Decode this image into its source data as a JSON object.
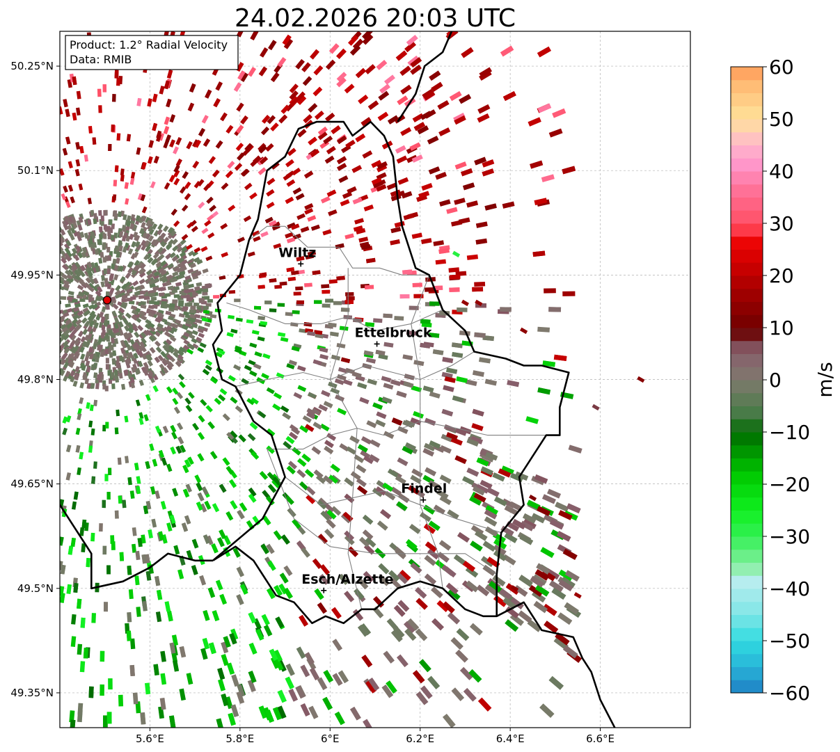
{
  "title": "24.02.2026 20:03 UTC",
  "info_box": {
    "line1": "Product: 1.2° Radial Velocity",
    "line2": "Data: RMIB"
  },
  "colorbar": {
    "label": "m/s",
    "min": -60,
    "max": 60,
    "tick_labels": [
      "60",
      "50",
      "40",
      "30",
      "20",
      "10",
      "0",
      "−10",
      "−20",
      "−30",
      "−40",
      "−50",
      "−60"
    ]
  },
  "colors": {
    "border": "#000000",
    "canton_lines": "#808080",
    "grid": "#b0b0b0",
    "radar_site": "#e10000"
  },
  "chart_data": {
    "type": "heatmap",
    "title": "24.02.2026 20:03 UTC",
    "projection": "lat/lon map",
    "xlim": [
      5.4,
      6.8
    ],
    "ylim": [
      49.3,
      50.3
    ],
    "grid": true,
    "x_ticks": [
      {
        "value": 5.6,
        "label": "5.6°E"
      },
      {
        "value": 5.8,
        "label": "5.8°E"
      },
      {
        "value": 6.0,
        "label": "6°E"
      },
      {
        "value": 6.2,
        "label": "6.2°E"
      },
      {
        "value": 6.4,
        "label": "6.4°E"
      },
      {
        "value": 6.6,
        "label": "6.6°E"
      }
    ],
    "y_ticks": [
      {
        "value": 50.25,
        "label": "50.25°N"
      },
      {
        "value": 50.1,
        "label": "50.1°N"
      },
      {
        "value": 49.95,
        "label": "49.95°N"
      },
      {
        "value": 49.8,
        "label": "49.8°N"
      },
      {
        "value": 49.65,
        "label": "49.65°N"
      },
      {
        "value": 49.5,
        "label": "49.5°N"
      },
      {
        "value": 49.35,
        "label": "49.35°N"
      }
    ],
    "radar_site": {
      "lon": 5.505,
      "lat": 49.914
    },
    "cities": [
      {
        "name": "Wiltz",
        "lon": 5.935,
        "lat": 49.966
      },
      {
        "name": "Ettelbruck",
        "lon": 6.104,
        "lat": 49.851
      },
      {
        "name": "Findel",
        "lon": 6.207,
        "lat": 49.627
      },
      {
        "name": "Esch/Alzette",
        "lon": 5.986,
        "lat": 49.497
      }
    ],
    "colorbar_stops": [
      {
        "v": -60,
        "c": "#1f7fc4"
      },
      {
        "v": -55,
        "c": "#28b4d8"
      },
      {
        "v": -50,
        "c": "#30dbe0"
      },
      {
        "v": -45,
        "c": "#7fe6e6"
      },
      {
        "v": -38,
        "c": "#bdeef0"
      },
      {
        "v": -36,
        "c": "#8cefa8"
      },
      {
        "v": -30,
        "c": "#33f055"
      },
      {
        "v": -25,
        "c": "#10f020"
      },
      {
        "v": -18,
        "c": "#00c800"
      },
      {
        "v": -10,
        "c": "#006a00"
      },
      {
        "v": -7,
        "c": "#437b43"
      },
      {
        "v": 0,
        "c": "#7f7a6e"
      },
      {
        "v": 5,
        "c": "#875f6b"
      },
      {
        "v": 8,
        "c": "#7a3a44"
      },
      {
        "v": 9,
        "c": "#6a0000"
      },
      {
        "v": 16,
        "c": "#9c0000"
      },
      {
        "v": 23,
        "c": "#d50000"
      },
      {
        "v": 28,
        "c": "#f80808"
      },
      {
        "v": 29,
        "c": "#ff4a5e"
      },
      {
        "v": 36,
        "c": "#ff6f94"
      },
      {
        "v": 42,
        "c": "#ff9bd0"
      },
      {
        "v": 46,
        "c": "#ffc0c4"
      },
      {
        "v": 50,
        "c": "#ffe29a"
      },
      {
        "v": 56,
        "c": "#ffbf78"
      },
      {
        "v": 60,
        "c": "#ff9a58"
      }
    ],
    "lux_border": [
      [
        5.74,
        49.54
      ],
      [
        5.79,
        49.56
      ],
      [
        5.83,
        49.54
      ],
      [
        5.88,
        49.49
      ],
      [
        5.92,
        49.48
      ],
      [
        5.96,
        49.45
      ],
      [
        5.99,
        49.46
      ],
      [
        6.03,
        49.45
      ],
      [
        6.07,
        49.47
      ],
      [
        6.1,
        49.47
      ],
      [
        6.15,
        49.5
      ],
      [
        6.2,
        49.51
      ],
      [
        6.25,
        49.5
      ],
      [
        6.3,
        49.47
      ],
      [
        6.34,
        49.46
      ],
      [
        6.37,
        49.46
      ],
      [
        6.37,
        49.52
      ],
      [
        6.38,
        49.58
      ],
      [
        6.43,
        49.62
      ],
      [
        6.42,
        49.66
      ],
      [
        6.48,
        49.72
      ],
      [
        6.51,
        49.72
      ],
      [
        6.51,
        49.76
      ],
      [
        6.53,
        49.81
      ],
      [
        6.47,
        49.82
      ],
      [
        6.43,
        49.82
      ],
      [
        6.39,
        49.83
      ],
      [
        6.32,
        49.84
      ],
      [
        6.3,
        49.87
      ],
      [
        6.25,
        49.9
      ],
      [
        6.22,
        49.95
      ],
      [
        6.19,
        49.96
      ],
      [
        6.16,
        50.02
      ],
      [
        6.15,
        50.06
      ],
      [
        6.14,
        50.12
      ],
      [
        6.12,
        50.15
      ],
      [
        6.09,
        50.17
      ],
      [
        6.05,
        50.15
      ],
      [
        6.03,
        50.17
      ],
      [
        5.97,
        50.17
      ],
      [
        5.93,
        50.16
      ],
      [
        5.9,
        50.12
      ],
      [
        5.86,
        50.1
      ],
      [
        5.84,
        50.03
      ],
      [
        5.82,
        50.0
      ],
      [
        5.8,
        49.95
      ],
      [
        5.75,
        49.91
      ],
      [
        5.76,
        49.87
      ],
      [
        5.74,
        49.85
      ],
      [
        5.76,
        49.8
      ],
      [
        5.79,
        49.79
      ],
      [
        5.83,
        49.74
      ],
      [
        5.87,
        49.72
      ],
      [
        5.9,
        49.66
      ],
      [
        5.85,
        49.6
      ],
      [
        5.74,
        49.54
      ]
    ],
    "fr_be_border": [
      [
        5.4,
        49.62
      ],
      [
        5.47,
        49.55
      ],
      [
        5.47,
        49.5
      ],
      [
        5.54,
        49.51
      ],
      [
        5.6,
        49.53
      ],
      [
        5.64,
        49.55
      ],
      [
        5.7,
        49.54
      ],
      [
        5.74,
        49.54
      ]
    ],
    "de_fr_border": [
      [
        6.37,
        49.46
      ],
      [
        6.43,
        49.48
      ],
      [
        6.47,
        49.44
      ],
      [
        6.54,
        49.43
      ],
      [
        6.56,
        49.4
      ],
      [
        6.58,
        49.38
      ],
      [
        6.6,
        49.34
      ],
      [
        6.64,
        49.29
      ]
    ],
    "north_border": [
      [
        6.15,
        50.17
      ],
      [
        6.19,
        50.21
      ],
      [
        6.21,
        50.25
      ],
      [
        6.25,
        50.27
      ],
      [
        6.27,
        50.3
      ]
    ],
    "canton_lines": [
      [
        [
          5.82,
          50.0
        ],
        [
          5.86,
          50.02
        ],
        [
          5.9,
          50.02
        ],
        [
          5.95,
          49.99
        ],
        [
          6.02,
          49.99
        ],
        [
          6.05,
          49.96
        ],
        [
          6.11,
          49.96
        ],
        [
          6.16,
          49.95
        ],
        [
          6.22,
          49.95
        ]
      ],
      [
        [
          5.77,
          49.91
        ],
        [
          5.82,
          49.9
        ],
        [
          5.9,
          49.88
        ],
        [
          5.98,
          49.88
        ],
        [
          6.04,
          49.89
        ],
        [
          6.1,
          49.87
        ],
        [
          6.18,
          49.88
        ],
        [
          6.25,
          49.9
        ]
      ],
      [
        [
          5.79,
          49.79
        ],
        [
          5.86,
          49.8
        ],
        [
          5.94,
          49.81
        ],
        [
          6.0,
          49.8
        ],
        [
          6.08,
          49.82
        ],
        [
          6.14,
          49.81
        ],
        [
          6.2,
          49.8
        ],
        [
          6.27,
          49.82
        ],
        [
          6.32,
          49.84
        ]
      ],
      [
        [
          5.86,
          49.7
        ],
        [
          5.94,
          49.7
        ],
        [
          6.0,
          49.72
        ],
        [
          6.06,
          49.73
        ],
        [
          6.12,
          49.72
        ],
        [
          6.2,
          49.74
        ],
        [
          6.28,
          49.73
        ],
        [
          6.35,
          49.72
        ],
        [
          6.43,
          49.72
        ],
        [
          6.48,
          49.72
        ]
      ],
      [
        [
          5.9,
          49.66
        ],
        [
          5.98,
          49.62
        ],
        [
          6.05,
          49.63
        ],
        [
          6.12,
          49.64
        ],
        [
          6.2,
          49.62
        ],
        [
          6.28,
          49.6
        ],
        [
          6.38,
          49.58
        ]
      ],
      [
        [
          6.04,
          49.96
        ],
        [
          6.04,
          49.89
        ],
        [
          6.0,
          49.8
        ],
        [
          6.06,
          49.73
        ],
        [
          6.05,
          49.63
        ],
        [
          6.04,
          49.55
        ],
        [
          6.07,
          49.47
        ]
      ],
      [
        [
          6.22,
          49.95
        ],
        [
          6.18,
          49.88
        ],
        [
          6.2,
          49.8
        ],
        [
          6.2,
          49.74
        ],
        [
          6.2,
          49.62
        ],
        [
          6.24,
          49.55
        ],
        [
          6.25,
          49.5
        ]
      ],
      [
        [
          5.86,
          49.7
        ],
        [
          5.92,
          49.6
        ],
        [
          6.0,
          49.56
        ],
        [
          6.1,
          49.55
        ],
        [
          6.2,
          49.55
        ],
        [
          6.3,
          49.55
        ],
        [
          6.37,
          49.52
        ]
      ]
    ]
  }
}
